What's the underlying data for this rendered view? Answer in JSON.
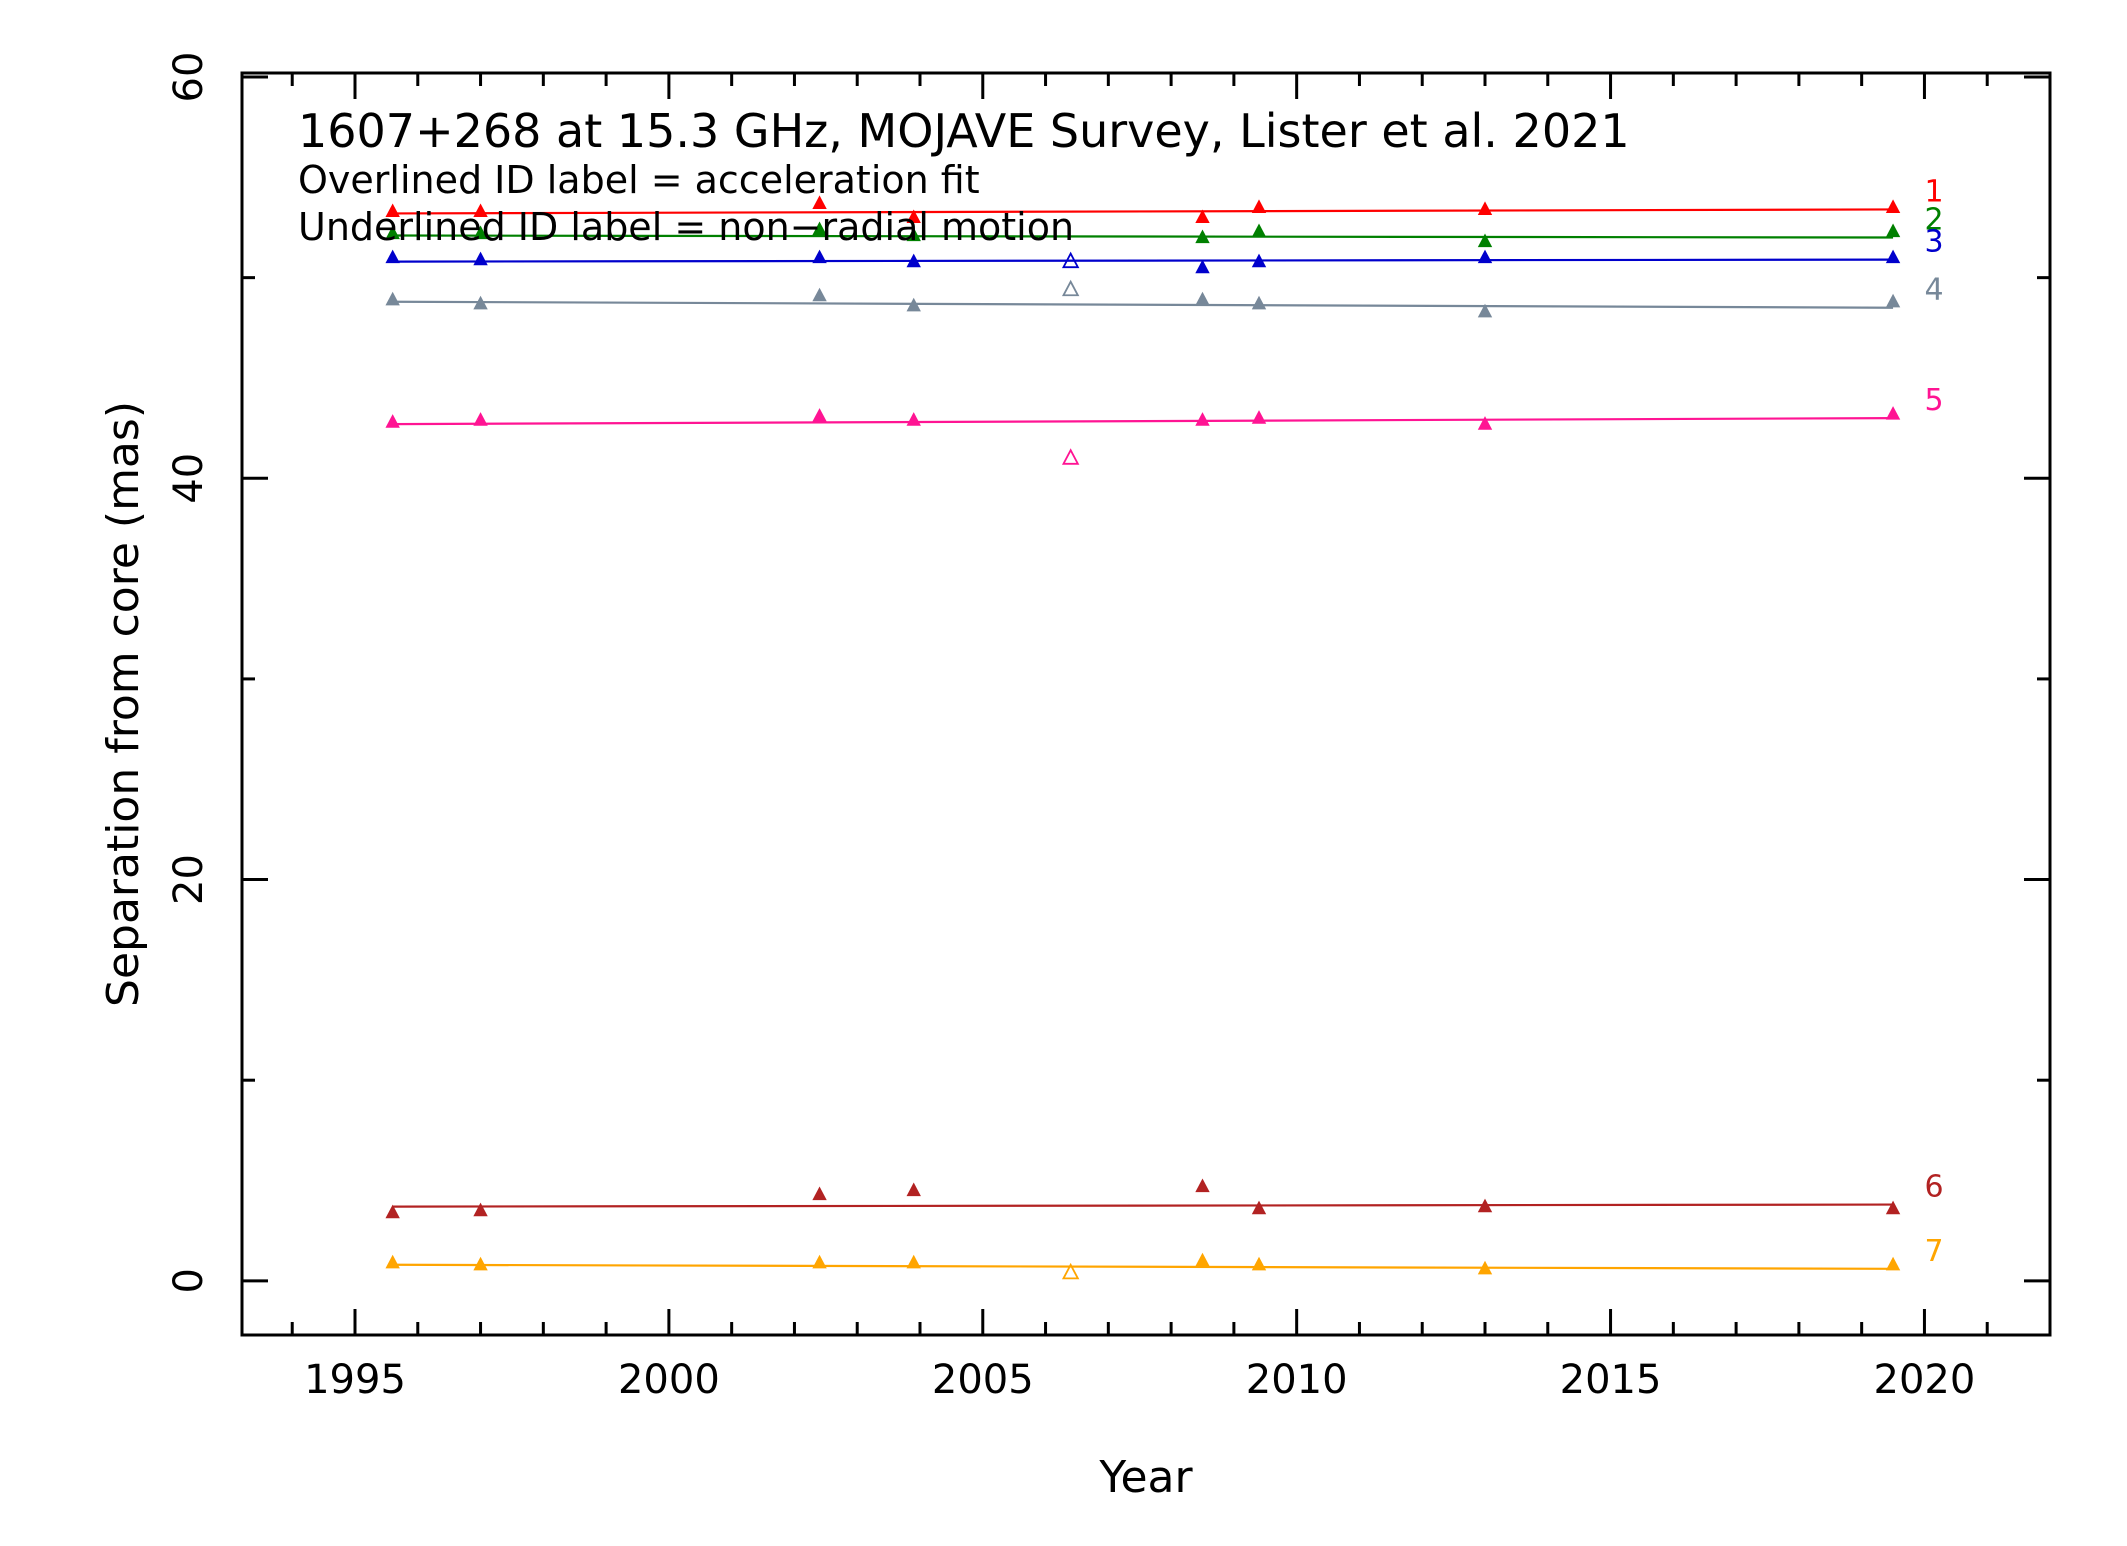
{
  "chart_data": {
    "type": "scatter",
    "title": "1607+268 at 15.3 GHz, MOJAVE Survey, Lister et al. 2021",
    "notes": [
      "Overlined ID label = acceleration fit",
      "Underlined ID label = non−radial motion"
    ],
    "xlabel": "Year",
    "ylabel": "Separation from core (mas)",
    "xlim": [
      1993.2,
      2022.0
    ],
    "ylim": [
      -2.7,
      60.2
    ],
    "xticks_major": [
      1995,
      2000,
      2005,
      2010,
      2015,
      2020
    ],
    "yticks_major": [
      0,
      20,
      40,
      60
    ],
    "grid": false,
    "series": [
      {
        "name": "1",
        "color": "#ff0000",
        "fit": [
          [
            1995.6,
            53.2
          ],
          [
            2019.5,
            53.4
          ]
        ],
        "points": [
          [
            1995.6,
            53.3
          ],
          [
            1997.0,
            53.3
          ],
          [
            2002.4,
            53.7
          ],
          [
            2003.9,
            53.0
          ],
          [
            2008.5,
            53.0
          ],
          [
            2009.4,
            53.5
          ],
          [
            2013.0,
            53.4
          ],
          [
            2019.5,
            53.5
          ]
        ],
        "open_points": []
      },
      {
        "name": "2",
        "color": "#008000",
        "fit": [
          [
            1995.6,
            52.1
          ],
          [
            2019.5,
            52.0
          ]
        ],
        "points": [
          [
            1995.6,
            52.2
          ],
          [
            1997.0,
            52.2
          ],
          [
            2002.4,
            52.4
          ],
          [
            2003.9,
            52.1
          ],
          [
            2008.5,
            52.0
          ],
          [
            2009.4,
            52.3
          ],
          [
            2013.0,
            51.8
          ],
          [
            2019.5,
            52.3
          ]
        ],
        "open_points": []
      },
      {
        "name": "3",
        "color": "#0000cc",
        "fit": [
          [
            1995.6,
            50.8
          ],
          [
            2019.5,
            50.9
          ]
        ],
        "points": [
          [
            1995.6,
            51.0
          ],
          [
            1997.0,
            50.9
          ],
          [
            2002.4,
            51.0
          ],
          [
            2003.9,
            50.8
          ],
          [
            2008.5,
            50.5
          ],
          [
            2009.4,
            50.8
          ],
          [
            2013.0,
            51.0
          ],
          [
            2019.5,
            51.0
          ]
        ],
        "open_points": [
          [
            2006.4,
            50.8
          ]
        ]
      },
      {
        "name": "4",
        "color": "#778899",
        "fit": [
          [
            1995.6,
            48.8
          ],
          [
            2019.5,
            48.5
          ]
        ],
        "points": [
          [
            1995.6,
            48.9
          ],
          [
            1997.0,
            48.7
          ],
          [
            2002.4,
            49.1
          ],
          [
            2003.9,
            48.6
          ],
          [
            2008.5,
            48.9
          ],
          [
            2009.4,
            48.7
          ],
          [
            2013.0,
            48.3
          ],
          [
            2019.5,
            48.8
          ]
        ],
        "open_points": [
          [
            2006.4,
            49.4
          ]
        ]
      },
      {
        "name": "5",
        "color": "#ff1493",
        "fit": [
          [
            1995.6,
            42.7
          ],
          [
            2019.5,
            43.0
          ]
        ],
        "points": [
          [
            1995.6,
            42.8
          ],
          [
            1997.0,
            42.9
          ],
          [
            2002.4,
            43.1
          ],
          [
            2003.9,
            42.9
          ],
          [
            2008.5,
            42.9
          ],
          [
            2009.4,
            43.0
          ],
          [
            2013.0,
            42.7
          ],
          [
            2019.5,
            43.2
          ]
        ],
        "open_points": [
          [
            2006.4,
            41.0
          ]
        ]
      },
      {
        "name": "6",
        "color": "#b22222",
        "fit": [
          [
            1995.6,
            3.7
          ],
          [
            2019.5,
            3.8
          ]
        ],
        "points": [
          [
            1995.6,
            3.4
          ],
          [
            1997.0,
            3.5
          ],
          [
            2002.4,
            4.3
          ],
          [
            2003.9,
            4.5
          ],
          [
            2008.5,
            4.7
          ],
          [
            2009.4,
            3.6
          ],
          [
            2013.0,
            3.7
          ],
          [
            2019.5,
            3.6
          ]
        ],
        "open_points": []
      },
      {
        "name": "7",
        "color": "#ffa500",
        "fit": [
          [
            1995.6,
            0.8
          ],
          [
            2019.5,
            0.6
          ]
        ],
        "points": [
          [
            1995.6,
            0.9
          ],
          [
            1997.0,
            0.8
          ],
          [
            2002.4,
            0.9
          ],
          [
            2003.9,
            0.9
          ],
          [
            2008.5,
            1.0
          ],
          [
            2009.4,
            0.8
          ],
          [
            2013.0,
            0.6
          ],
          [
            2019.5,
            0.8
          ]
        ],
        "open_points": [
          [
            2006.4,
            0.4
          ]
        ]
      }
    ]
  }
}
